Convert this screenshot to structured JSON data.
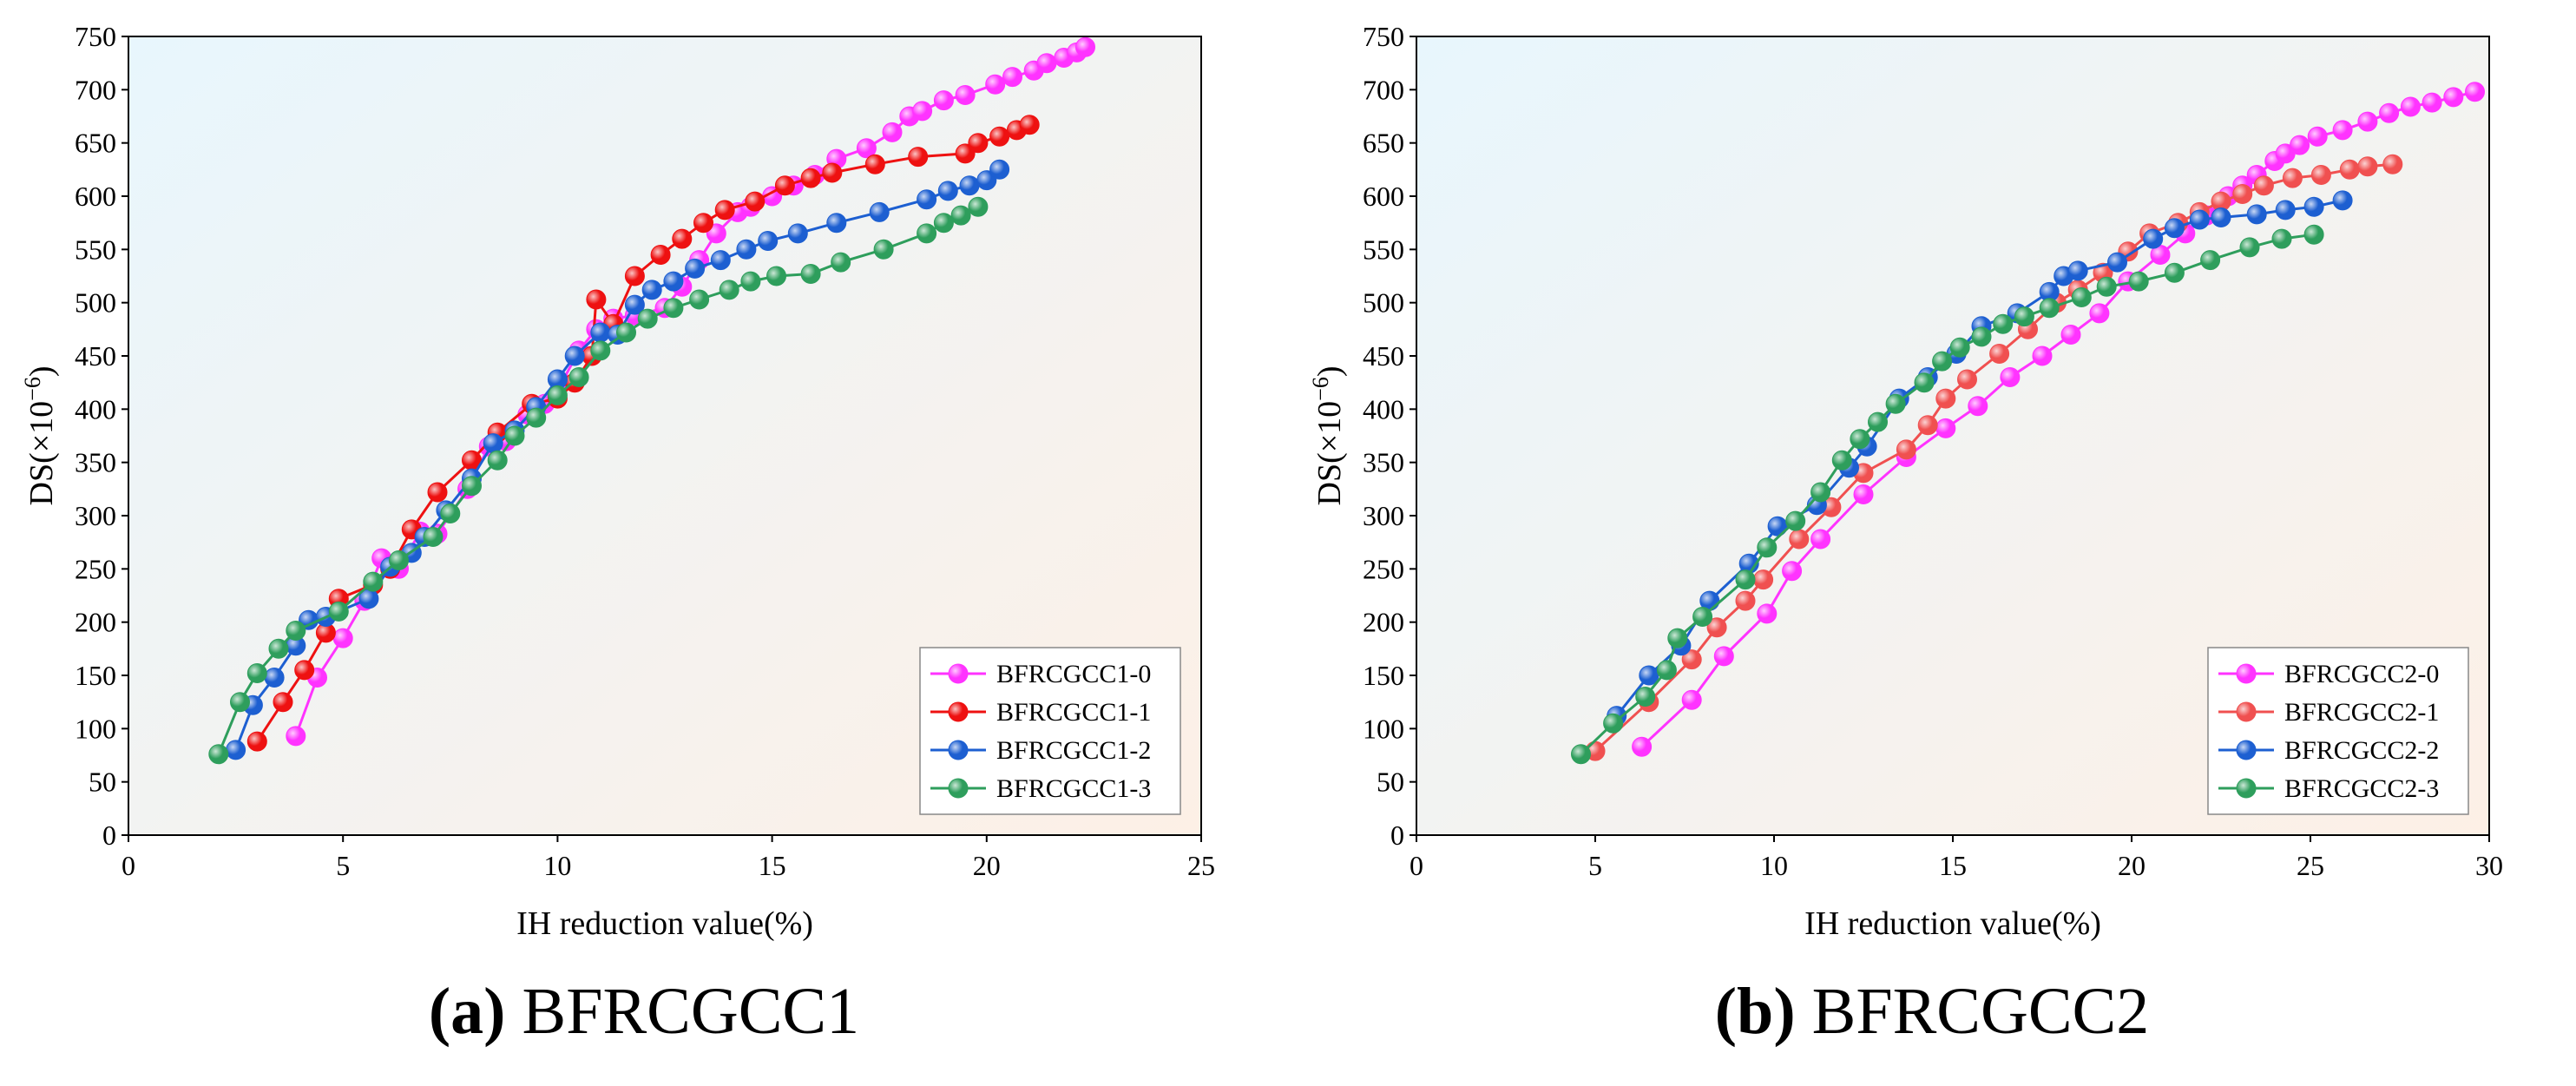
{
  "chart_data": [
    {
      "type": "scatter",
      "xlabel": "IH reduction value(%)",
      "ylabel": "DS(×10",
      "ylabel_exp": "−6",
      "ylabel_close": ")",
      "xlim": [
        0,
        25
      ],
      "ylim": [
        0,
        750
      ],
      "xticks": [
        0,
        5,
        10,
        15,
        20,
        25
      ],
      "yticks": [
        0,
        50,
        100,
        150,
        200,
        250,
        300,
        350,
        400,
        450,
        500,
        550,
        600,
        650,
        700,
        750
      ],
      "legend_position": "bottom-right",
      "caption_letter": "(a)",
      "caption_text": " BFRCGCC1",
      "colors": {
        "bg_left": "#e8f6fd",
        "bg_right": "#fdf0e6"
      },
      "series": [
        {
          "name": "BFRCGCC1-0",
          "color": "#ff33ff",
          "points": [
            [
              3.9,
              93
            ],
            [
              4.4,
              148
            ],
            [
              5.0,
              185
            ],
            [
              5.5,
              220
            ],
            [
              5.9,
              260
            ],
            [
              6.3,
              250
            ],
            [
              6.8,
              285
            ],
            [
              7.2,
              283
            ],
            [
              7.9,
              325
            ],
            [
              8.4,
              365
            ],
            [
              8.8,
              370
            ],
            [
              9.3,
              395
            ],
            [
              9.7,
              405
            ],
            [
              10.1,
              425
            ],
            [
              10.5,
              455
            ],
            [
              10.9,
              475
            ],
            [
              11.3,
              485
            ],
            [
              11.8,
              488
            ],
            [
              12.5,
              495
            ],
            [
              12.9,
              515
            ],
            [
              13.3,
              540
            ],
            [
              13.7,
              565
            ],
            [
              14.2,
              585
            ],
            [
              14.5,
              590
            ],
            [
              15.0,
              600
            ],
            [
              15.5,
              610
            ],
            [
              16.0,
              620
            ],
            [
              16.5,
              635
            ],
            [
              17.2,
              645
            ],
            [
              17.8,
              660
            ],
            [
              18.2,
              675
            ],
            [
              18.5,
              680
            ],
            [
              19.0,
              690
            ],
            [
              19.5,
              695
            ],
            [
              20.2,
              705
            ],
            [
              20.6,
              712
            ],
            [
              21.1,
              718
            ],
            [
              21.4,
              725
            ],
            [
              21.8,
              730
            ],
            [
              22.1,
              735
            ],
            [
              22.3,
              740
            ]
          ]
        },
        {
          "name": "BFRCGCC1-1",
          "color": "#ee1111",
          "points": [
            [
              3.0,
              88
            ],
            [
              3.6,
              125
            ],
            [
              4.1,
              155
            ],
            [
              4.6,
              190
            ],
            [
              4.9,
              222
            ],
            [
              5.7,
              235
            ],
            [
              6.1,
              250
            ],
            [
              6.6,
              287
            ],
            [
              7.2,
              322
            ],
            [
              8.0,
              352
            ],
            [
              8.6,
              378
            ],
            [
              9.4,
              405
            ],
            [
              10.0,
              410
            ],
            [
              10.4,
              425
            ],
            [
              10.8,
              450
            ],
            [
              10.9,
              503
            ],
            [
              11.3,
              480
            ],
            [
              11.8,
              525
            ],
            [
              12.4,
              545
            ],
            [
              12.9,
              560
            ],
            [
              13.4,
              575
            ],
            [
              13.9,
              587
            ],
            [
              14.6,
              595
            ],
            [
              15.3,
              610
            ],
            [
              15.9,
              617
            ],
            [
              16.4,
              622
            ],
            [
              17.4,
              630
            ],
            [
              18.4,
              637
            ],
            [
              19.5,
              640
            ],
            [
              19.8,
              650
            ],
            [
              20.3,
              656
            ],
            [
              20.7,
              662
            ],
            [
              21.0,
              667
            ]
          ]
        },
        {
          "name": "BFRCGCC1-2",
          "color": "#1d5fd1",
          "points": [
            [
              2.5,
              80
            ],
            [
              2.9,
              122
            ],
            [
              3.4,
              148
            ],
            [
              3.9,
              178
            ],
            [
              4.2,
              202
            ],
            [
              4.6,
              205
            ],
            [
              5.6,
              222
            ],
            [
              6.1,
              252
            ],
            [
              6.6,
              265
            ],
            [
              6.9,
              280
            ],
            [
              7.4,
              305
            ],
            [
              8.0,
              335
            ],
            [
              8.5,
              368
            ],
            [
              9.0,
              380
            ],
            [
              9.5,
              402
            ],
            [
              10.0,
              428
            ],
            [
              10.4,
              450
            ],
            [
              11.0,
              472
            ],
            [
              11.4,
              470
            ],
            [
              11.8,
              498
            ],
            [
              12.2,
              512
            ],
            [
              12.7,
              520
            ],
            [
              13.2,
              532
            ],
            [
              13.8,
              540
            ],
            [
              14.4,
              550
            ],
            [
              14.9,
              558
            ],
            [
              15.6,
              565
            ],
            [
              16.5,
              575
            ],
            [
              17.5,
              585
            ],
            [
              18.6,
              597
            ],
            [
              19.1,
              605
            ],
            [
              19.6,
              610
            ],
            [
              20.0,
              615
            ],
            [
              20.3,
              625
            ]
          ]
        },
        {
          "name": "BFRCGCC1-3",
          "color": "#2e9e5c",
          "points": [
            [
              2.1,
              76
            ],
            [
              2.6,
              125
            ],
            [
              3.0,
              152
            ],
            [
              3.5,
              175
            ],
            [
              3.9,
              192
            ],
            [
              4.9,
              210
            ],
            [
              5.7,
              238
            ],
            [
              6.3,
              258
            ],
            [
              7.1,
              280
            ],
            [
              7.5,
              302
            ],
            [
              8.0,
              328
            ],
            [
              8.6,
              352
            ],
            [
              9.0,
              375
            ],
            [
              9.5,
              392
            ],
            [
              10.0,
              413
            ],
            [
              10.5,
              430
            ],
            [
              11.0,
              455
            ],
            [
              11.6,
              472
            ],
            [
              12.1,
              485
            ],
            [
              12.7,
              495
            ],
            [
              13.3,
              503
            ],
            [
              14.0,
              512
            ],
            [
              14.5,
              520
            ],
            [
              15.1,
              525
            ],
            [
              15.9,
              527
            ],
            [
              16.6,
              538
            ],
            [
              17.6,
              550
            ],
            [
              18.6,
              565
            ],
            [
              19.0,
              575
            ],
            [
              19.4,
              582
            ],
            [
              19.8,
              590
            ]
          ]
        }
      ]
    },
    {
      "type": "scatter",
      "xlabel": "IH reduction value(%)",
      "ylabel": "DS(×10",
      "ylabel_exp": "−6",
      "ylabel_close": ")",
      "xlim": [
        0,
        30
      ],
      "ylim": [
        0,
        750
      ],
      "xticks": [
        0,
        5,
        10,
        15,
        20,
        25,
        30
      ],
      "yticks": [
        0,
        50,
        100,
        150,
        200,
        250,
        300,
        350,
        400,
        450,
        500,
        550,
        600,
        650,
        700,
        750
      ],
      "legend_position": "bottom-right",
      "caption_letter": "(b)",
      "caption_text": " BFRCGCC2",
      "colors": {
        "bg_left": "#e8f6fd",
        "bg_right": "#fdf0e6"
      },
      "series": [
        {
          "name": "BFRCGCC2-0",
          "color": "#ff33ff",
          "points": [
            [
              6.3,
              83
            ],
            [
              7.7,
              127
            ],
            [
              8.6,
              168
            ],
            [
              9.8,
              208
            ],
            [
              10.5,
              248
            ],
            [
              11.3,
              278
            ],
            [
              12.5,
              320
            ],
            [
              13.7,
              355
            ],
            [
              14.8,
              382
            ],
            [
              15.7,
              403
            ],
            [
              16.6,
              430
            ],
            [
              17.5,
              450
            ],
            [
              18.3,
              470
            ],
            [
              19.1,
              490
            ],
            [
              19.9,
              520
            ],
            [
              20.8,
              545
            ],
            [
              21.5,
              565
            ],
            [
              22.1,
              582
            ],
            [
              22.7,
              600
            ],
            [
              23.1,
              610
            ],
            [
              23.5,
              620
            ],
            [
              24.0,
              633
            ],
            [
              24.3,
              640
            ],
            [
              24.7,
              648
            ],
            [
              25.2,
              656
            ],
            [
              25.9,
              662
            ],
            [
              26.6,
              670
            ],
            [
              27.2,
              678
            ],
            [
              27.8,
              684
            ],
            [
              28.4,
              688
            ],
            [
              29.0,
              693
            ],
            [
              29.6,
              698
            ]
          ]
        },
        {
          "name": "BFRCGCC2-1",
          "color": "#f05050",
          "points": [
            [
              5.0,
              79
            ],
            [
              6.5,
              125
            ],
            [
              7.7,
              165
            ],
            [
              8.4,
              195
            ],
            [
              9.2,
              220
            ],
            [
              9.7,
              240
            ],
            [
              10.7,
              278
            ],
            [
              11.6,
              308
            ],
            [
              12.5,
              340
            ],
            [
              13.7,
              362
            ],
            [
              14.3,
              385
            ],
            [
              14.8,
              410
            ],
            [
              15.4,
              428
            ],
            [
              16.3,
              452
            ],
            [
              17.1,
              475
            ],
            [
              17.9,
              500
            ],
            [
              18.5,
              512
            ],
            [
              19.2,
              528
            ],
            [
              19.9,
              548
            ],
            [
              20.5,
              565
            ],
            [
              21.3,
              575
            ],
            [
              21.9,
              585
            ],
            [
              22.5,
              595
            ],
            [
              23.1,
              602
            ],
            [
              23.7,
              610
            ],
            [
              24.5,
              617
            ],
            [
              25.3,
              620
            ],
            [
              26.1,
              625
            ],
            [
              26.6,
              628
            ],
            [
              27.3,
              630
            ]
          ]
        },
        {
          "name": "BFRCGCC2-2",
          "color": "#1d5fd1",
          "points": [
            [
              5.6,
              112
            ],
            [
              6.5,
              150
            ],
            [
              7.4,
              178
            ],
            [
              8.2,
              220
            ],
            [
              9.3,
              255
            ],
            [
              10.1,
              290
            ],
            [
              11.2,
              310
            ],
            [
              12.1,
              345
            ],
            [
              12.6,
              365
            ],
            [
              13.5,
              410
            ],
            [
              14.3,
              430
            ],
            [
              15.1,
              452
            ],
            [
              15.8,
              478
            ],
            [
              16.8,
              490
            ],
            [
              17.7,
              510
            ],
            [
              18.1,
              525
            ],
            [
              18.5,
              530
            ],
            [
              19.6,
              538
            ],
            [
              20.6,
              560
            ],
            [
              21.2,
              570
            ],
            [
              21.9,
              578
            ],
            [
              22.5,
              580
            ],
            [
              23.5,
              583
            ],
            [
              24.3,
              587
            ],
            [
              25.1,
              590
            ],
            [
              25.9,
              596
            ]
          ]
        },
        {
          "name": "BFRCGCC2-3",
          "color": "#2e9e5c",
          "points": [
            [
              4.6,
              76
            ],
            [
              5.5,
              105
            ],
            [
              6.4,
              130
            ],
            [
              7.0,
              155
            ],
            [
              7.3,
              185
            ],
            [
              8.0,
              205
            ],
            [
              9.2,
              240
            ],
            [
              9.8,
              270
            ],
            [
              10.6,
              295
            ],
            [
              11.3,
              322
            ],
            [
              11.9,
              352
            ],
            [
              12.4,
              372
            ],
            [
              12.9,
              388
            ],
            [
              13.4,
              405
            ],
            [
              14.2,
              425
            ],
            [
              14.7,
              445
            ],
            [
              15.2,
              458
            ],
            [
              15.8,
              468
            ],
            [
              16.4,
              480
            ],
            [
              17.0,
              487
            ],
            [
              17.7,
              495
            ],
            [
              18.6,
              505
            ],
            [
              19.3,
              515
            ],
            [
              20.2,
              520
            ],
            [
              21.2,
              528
            ],
            [
              22.2,
              540
            ],
            [
              23.3,
              552
            ],
            [
              24.2,
              560
            ],
            [
              25.1,
              564
            ]
          ]
        }
      ]
    }
  ]
}
